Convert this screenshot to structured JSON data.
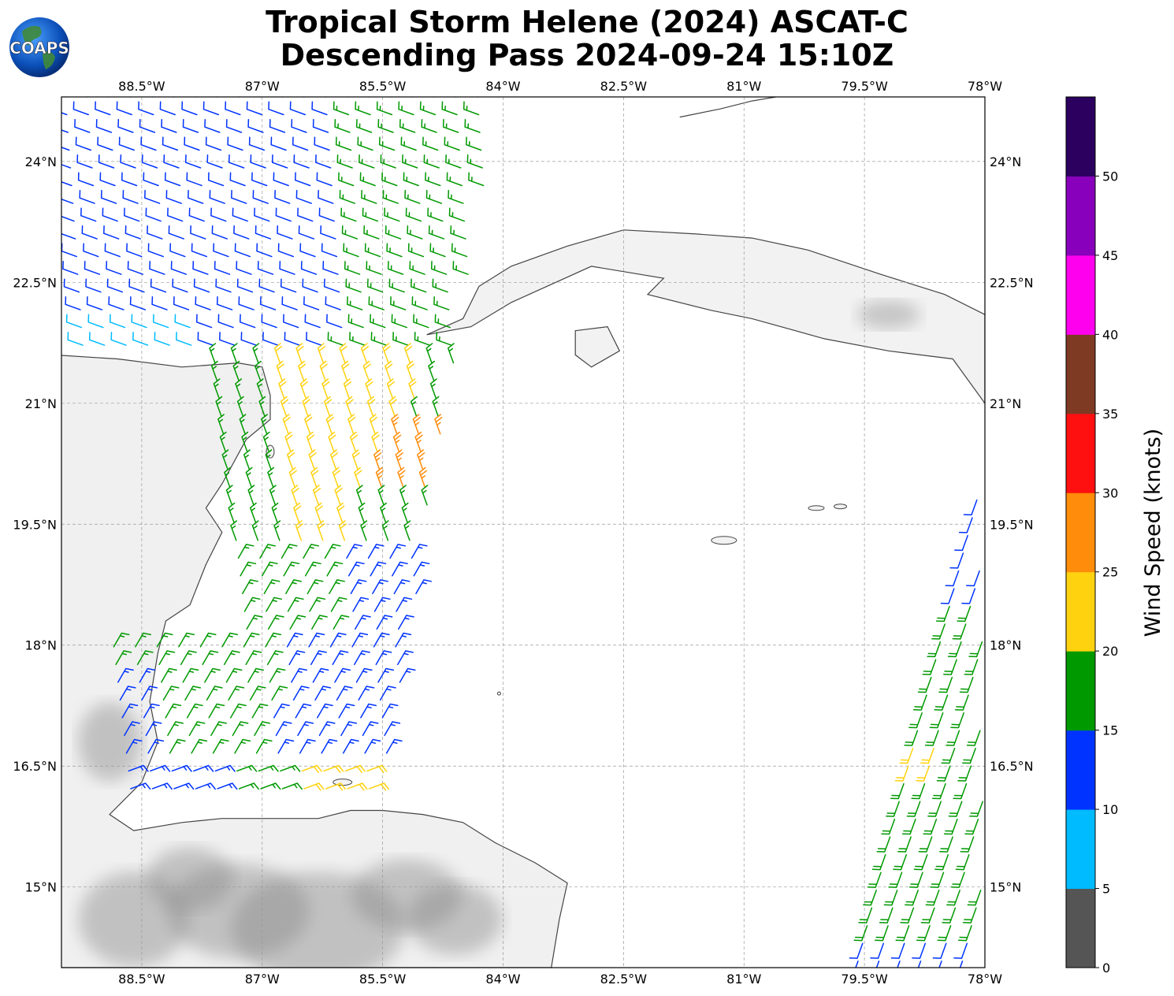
{
  "header": {
    "title_line1": "Tropical Storm Helene (2024) ASCAT-C",
    "title_line2": "Descending Pass 2024-09-24 15:10Z",
    "logo_text": "COAPS"
  },
  "map": {
    "lon_range": [
      -89.5,
      -78.0
    ],
    "lat_range": [
      14.0,
      24.8
    ],
    "lon_ticks": [
      {
        "value": -88.5,
        "label": "88.5°W"
      },
      {
        "value": -87.0,
        "label": "87°W"
      },
      {
        "value": -85.5,
        "label": "85.5°W"
      },
      {
        "value": -84.0,
        "label": "84°W"
      },
      {
        "value": -82.5,
        "label": "82.5°W"
      },
      {
        "value": -81.0,
        "label": "81°W"
      },
      {
        "value": -79.5,
        "label": "79.5°W"
      },
      {
        "value": -78.0,
        "label": "78°W"
      }
    ],
    "lat_ticks": [
      {
        "value": 24.0,
        "label": "24°N"
      },
      {
        "value": 22.5,
        "label": "22.5°N"
      },
      {
        "value": 21.0,
        "label": "21°N"
      },
      {
        "value": 19.5,
        "label": "19.5°N"
      },
      {
        "value": 18.0,
        "label": "18°N"
      },
      {
        "value": 16.5,
        "label": "16.5°N"
      },
      {
        "value": 15.0,
        "label": "15°N"
      }
    ],
    "gridlines": true,
    "coastline_color": "#444444",
    "land_shading": "grayscale-terrain"
  },
  "colorbar": {
    "label": "Wind Speed (knots)",
    "ticks": [
      "0",
      "5",
      "10",
      "15",
      "20",
      "25",
      "30",
      "35",
      "40",
      "45",
      "50"
    ],
    "colors": [
      "#555555",
      "#00bbff",
      "#0033ff",
      "#009900",
      "#ffd20f",
      "#ff8c0a",
      "#ff1010",
      "#7f3a24",
      "#ff00ee",
      "#8800bb",
      "#2b005f"
    ]
  },
  "wind_barbs": {
    "west_swath": {
      "lon_min": -89.4,
      "lon_max": -85.4,
      "lat_min": 16.2,
      "lat_max": 24.8,
      "center_lon_at": [
        {
          "lat": 24.6,
          "lon": -87.0
        },
        {
          "lat": 16.4,
          "lon": -87.6
        }
      ]
    },
    "east_swath": {
      "lat_min": 14.0,
      "lat_max": 19.8
    },
    "speed_zones_knots": [
      {
        "zone": "north-west",
        "speed": 12
      },
      {
        "zone": "north-east",
        "speed": 17
      },
      {
        "zone": "center",
        "speed": 22
      },
      {
        "zone": "center-east",
        "speed": 27
      },
      {
        "zone": "south",
        "speed": 13
      },
      {
        "zone": "east-swath",
        "speed": 18
      }
    ]
  }
}
